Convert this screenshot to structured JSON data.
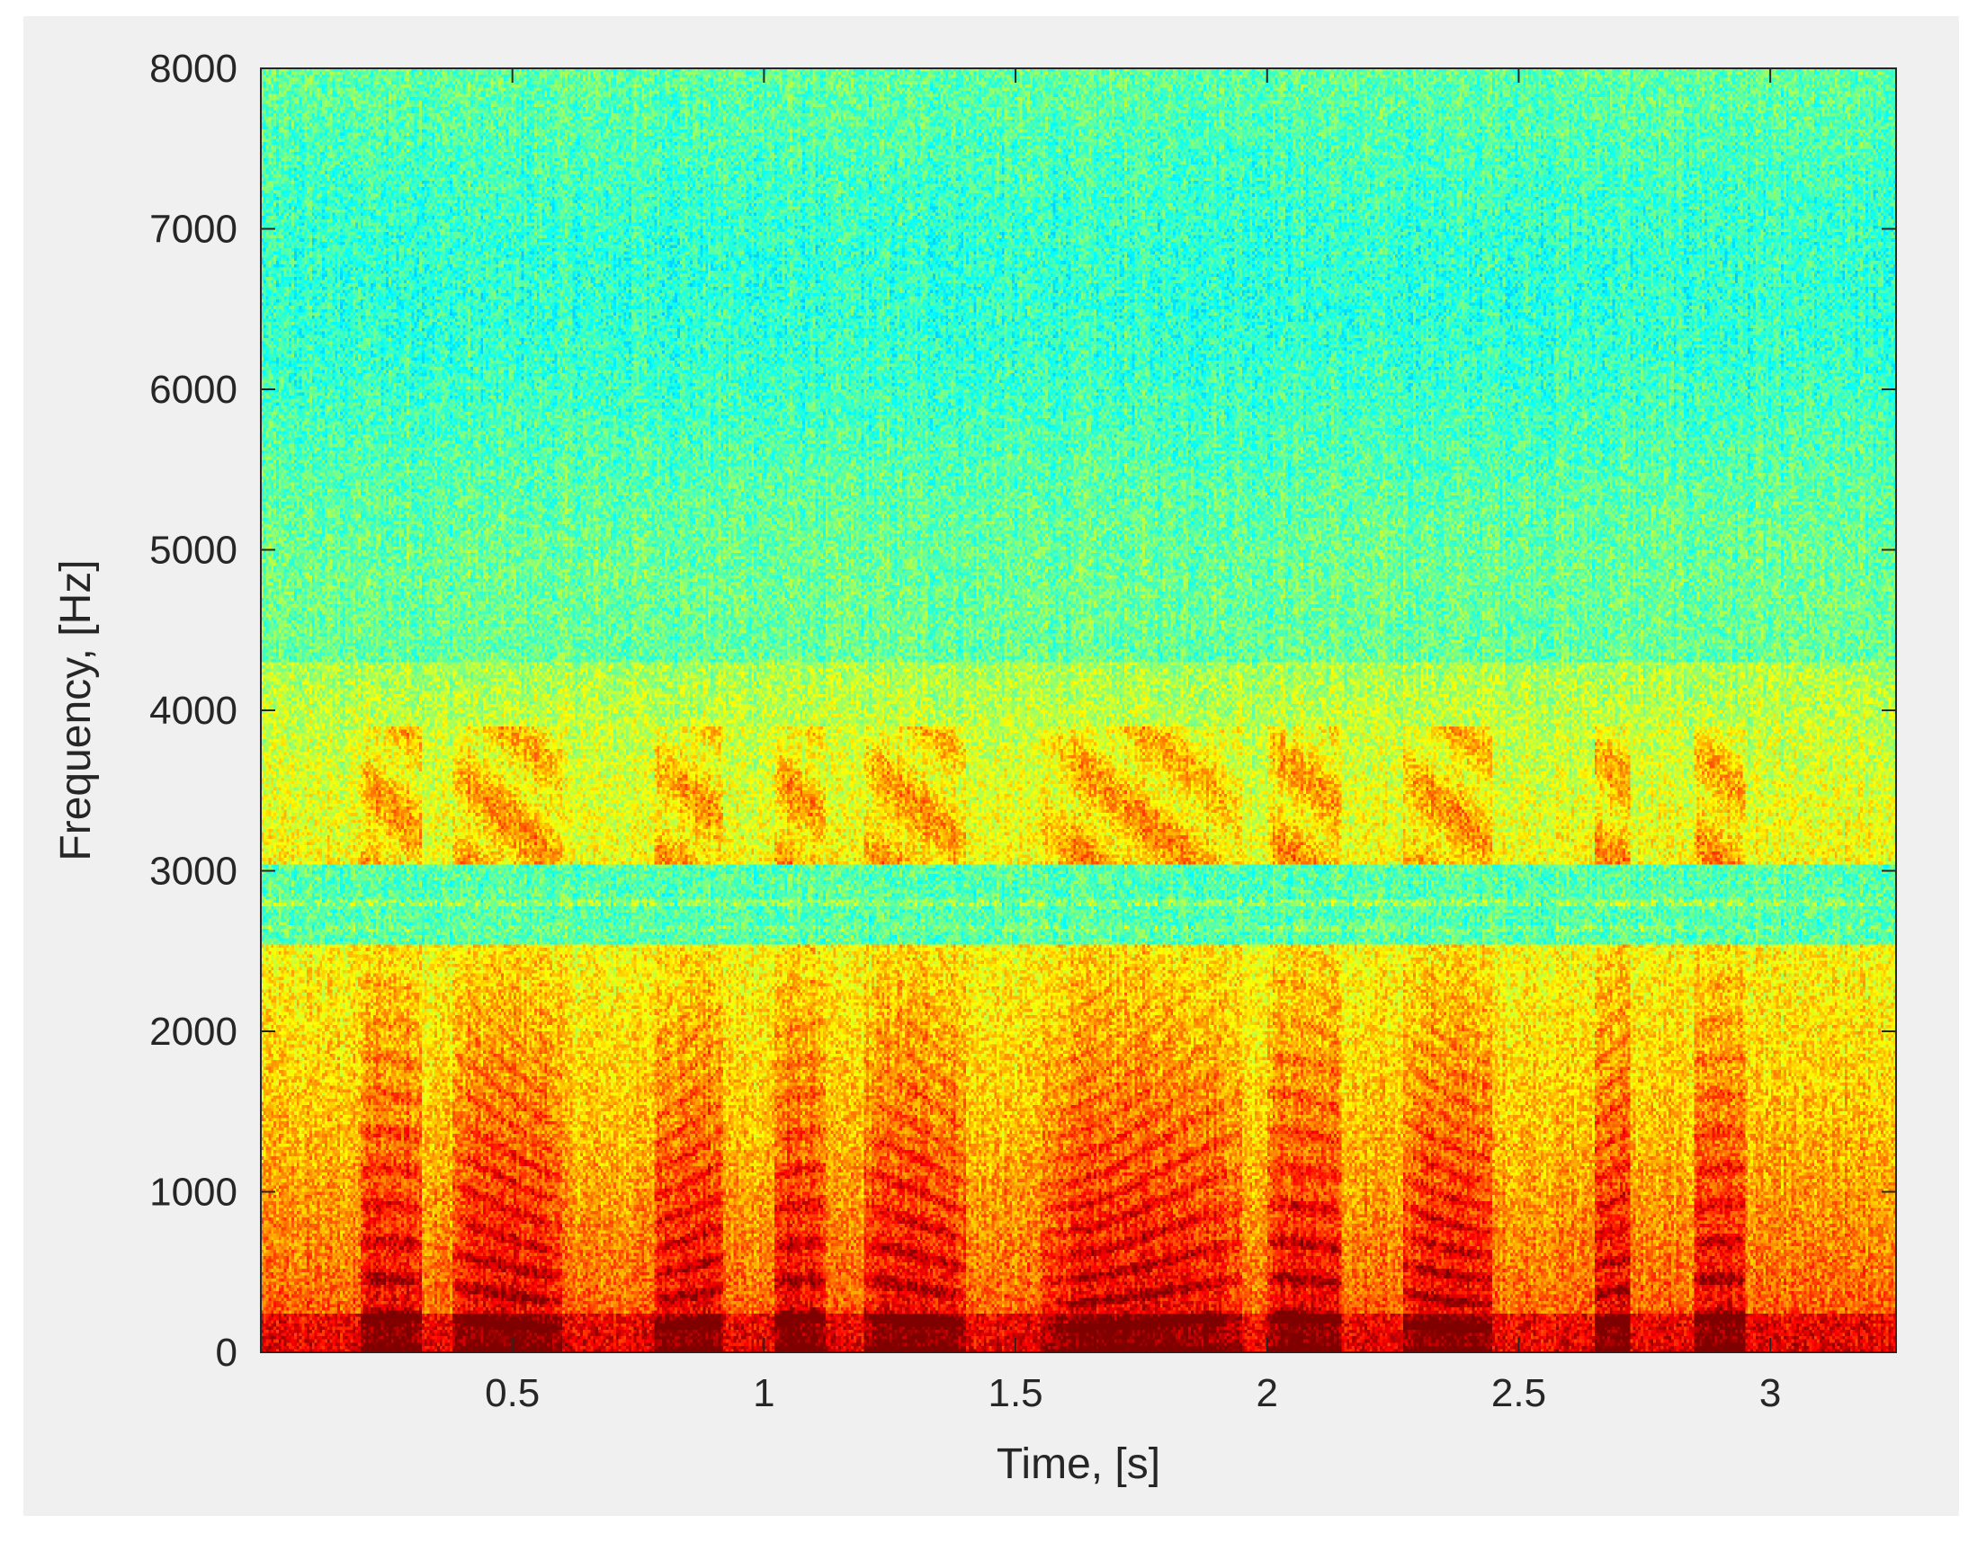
{
  "chart_data": {
    "type": "heatmap",
    "title": "",
    "xlabel": "Time, [s]",
    "ylabel": "Frequency, [Hz]",
    "xlim": [
      0,
      3.25
    ],
    "ylim": [
      0,
      8000
    ],
    "x_ticks": [
      0.5,
      1,
      1.5,
      2,
      2.5,
      3
    ],
    "x_tick_labels": [
      "0.5",
      "1",
      "1.5",
      "2",
      "2.5",
      "3"
    ],
    "y_ticks": [
      0,
      1000,
      2000,
      3000,
      4000,
      5000,
      6000,
      7000,
      8000
    ],
    "y_tick_labels": [
      "0",
      "1000",
      "2000",
      "3000",
      "4000",
      "5000",
      "6000",
      "7000",
      "8000"
    ],
    "colormap": "jet",
    "value_range_shown": [
      "cyan",
      "green",
      "yellow",
      "orange",
      "red",
      "dark red"
    ],
    "grid": false,
    "legend": "none",
    "voiced_segments_s": [
      [
        0.2,
        0.32
      ],
      [
        0.38,
        0.6
      ],
      [
        0.78,
        0.92
      ],
      [
        1.02,
        1.12
      ],
      [
        1.2,
        1.4
      ],
      [
        1.55,
        1.95
      ],
      [
        2.0,
        2.15
      ],
      [
        2.27,
        2.45
      ],
      [
        2.65,
        2.72
      ],
      [
        2.85,
        2.95
      ]
    ],
    "notch_band_hz": [
      2550,
      3050
    ]
  }
}
